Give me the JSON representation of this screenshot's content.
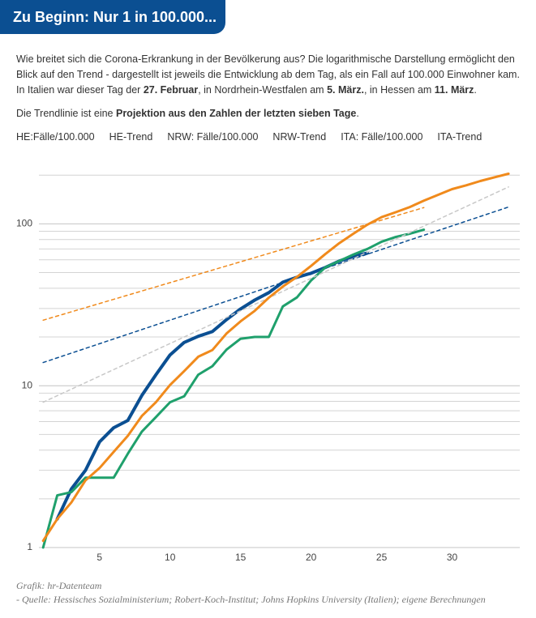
{
  "header": {
    "title": "Zu Beginn: Nur 1 in 100.000..."
  },
  "intro": [
    "Wie breitet sich die Corona-Erkrankung in der Bevölkerung aus? Die logarithmische Darstellung ermöglicht den Blick auf den Trend - dargestellt ist jeweils die Entwicklung ab dem Tag, als ein Fall auf 100.000 Einwohner kam. In Italien war dieser Tag der ",
    "27. Februar",
    ", in Nordrhein-Westfalen am ",
    "5. März.",
    ", in Hessen am ",
    "11. März",
    "."
  ],
  "note": [
    "Die Trendlinie ist eine ",
    "Projektion aus den Zahlen der letzten sieben Tage",
    "."
  ],
  "chart_data": {
    "type": "line",
    "y_scale": "log",
    "grid": true,
    "xlim": [
      0.7,
      34.8
    ],
    "xticks": [
      5,
      10,
      15,
      20,
      25,
      30
    ],
    "ylim": [
      1,
      210
    ],
    "yticks": [
      1,
      10,
      100
    ],
    "y_minor_gridlines": [
      2,
      3,
      4,
      5,
      6,
      7,
      8,
      9,
      20,
      30,
      40,
      50,
      60,
      70,
      80,
      90,
      200
    ],
    "series": [
      {
        "name": "HE:Fälle/100.000",
        "color": "#0b4f92",
        "style": "solid",
        "x": [
          2,
          3,
          4,
          5,
          6,
          7,
          8,
          9,
          10,
          11,
          12,
          13,
          14,
          15,
          16,
          17,
          18,
          19,
          20,
          21,
          22,
          23,
          24
        ],
        "values": [
          1.5,
          2.3,
          3.0,
          4.5,
          5.5,
          6.1,
          8.7,
          11.7,
          15.5,
          18.5,
          20.2,
          21.6,
          25.6,
          29.8,
          33.8,
          37.6,
          43.6,
          46.8,
          49.5,
          53.7,
          58.9,
          63,
          66
        ]
      },
      {
        "name": "HE-Trend",
        "color": "#0b4f92",
        "style": "dashed",
        "x": [
          1,
          34
        ],
        "values": [
          13.9,
          127
        ]
      },
      {
        "name": "NRW: Fälle/100.000",
        "color": "#1fa06c",
        "style": "solid",
        "x": [
          1,
          2,
          3,
          4,
          5,
          6,
          7,
          8,
          9,
          10,
          11,
          12,
          13,
          14,
          15,
          16,
          17,
          18,
          19,
          20,
          21,
          22,
          23,
          24,
          25,
          26,
          27,
          28
        ],
        "values": [
          1.0,
          2.1,
          2.2,
          2.7,
          2.7,
          2.7,
          3.8,
          5.2,
          6.4,
          7.9,
          8.6,
          11.7,
          13.2,
          16.7,
          19.5,
          20,
          20,
          30.9,
          35.1,
          44.7,
          53.7,
          58.9,
          64.6,
          70,
          77.6,
          83,
          87,
          92
        ]
      },
      {
        "name": "NRW-Trend",
        "color": "#c8c8c8",
        "style": "dashed",
        "x": [
          1,
          34
        ],
        "values": [
          7.9,
          169
        ]
      },
      {
        "name": "ITA: Fälle/100.000",
        "color": "#f08a1c",
        "style": "solid",
        "x": [
          1,
          2,
          3,
          4,
          5,
          6,
          7,
          8,
          9,
          10,
          11,
          12,
          13,
          14,
          15,
          16,
          17,
          18,
          19,
          20,
          21,
          22,
          23,
          24,
          25,
          26,
          27,
          28,
          29,
          30,
          31,
          32,
          33,
          34
        ],
        "values": [
          1.1,
          1.5,
          1.9,
          2.6,
          3.1,
          3.9,
          4.9,
          6.5,
          7.9,
          10.1,
          12.3,
          15.1,
          16.6,
          21,
          25,
          29,
          35,
          41,
          47,
          55,
          65,
          76,
          87,
          99,
          110,
          118,
          127,
          139,
          151,
          164,
          173,
          184,
          194,
          204
        ]
      },
      {
        "name": "ITA-Trend",
        "color": "#f08a1c",
        "style": "dashed",
        "x": [
          1,
          28
        ],
        "values": [
          25.4,
          126
        ]
      }
    ]
  },
  "footer": {
    "credit": "Grafik: hr-Datenteam",
    "source": "- Quelle: Hessisches Sozialministerium; Robert-Koch-Institut; Johns Hopkins University (Italien); eigene Berechnungen"
  }
}
